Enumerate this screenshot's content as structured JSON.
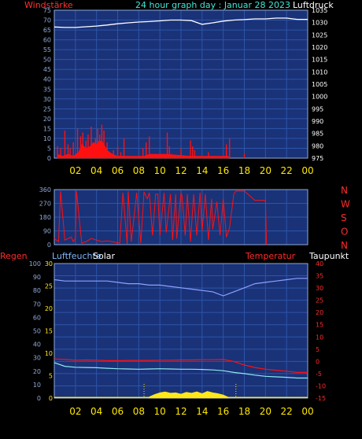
{
  "colors": {
    "background": "#000000",
    "panel": "#1a3278",
    "grid": "#2d55a8",
    "border": "#8fa8d8",
    "white": "#ffffff",
    "red": "#ff1010",
    "cyan": "#8fe8f0",
    "blue_line": "#8fa0ff",
    "yellow": "#ffe81a",
    "label_red": "#ff2a2a",
    "label_blue": "#7fb7ff",
    "label_cyan": "#40e8d8",
    "x_tick": "#ffe800"
  },
  "header": {
    "left": "Windstärke",
    "center": "24 hour graph day : Januar 28 2023",
    "right": "Luftdruck"
  },
  "bottom_header": {
    "regen": "Regen",
    "luftfeuchte": "Luftfeuchte",
    "solar": "Solar",
    "temperatur": "Temperatur",
    "taupunkt": "Taupunkt"
  },
  "x_ticks": [
    "02",
    "04",
    "06",
    "08",
    "10",
    "12",
    "14",
    "16",
    "18",
    "20",
    "22",
    "00"
  ],
  "chart_data": [
    {
      "type": "line",
      "name": "wind_and_pressure",
      "y_left": {
        "label": "Windstärke",
        "ticks": [
          "0",
          "5",
          "10",
          "15",
          "20",
          "25",
          "30",
          "35",
          "40",
          "45",
          "50",
          "55",
          "60",
          "65",
          "70",
          "75"
        ],
        "range": [
          0,
          75
        ]
      },
      "y_right": {
        "label": "Luftdruck",
        "ticks": [
          "975",
          "980",
          "985",
          "990",
          "995",
          "1000",
          "1005",
          "1010",
          "1015",
          "1020",
          "1025",
          "1030",
          "1035"
        ],
        "range": [
          975,
          1035
        ]
      },
      "x_range_hours": [
        0,
        24
      ],
      "series": [
        {
          "series_key": "pressure",
          "axis": "right",
          "x": [
            0,
            1,
            2,
            3,
            4,
            5,
            6,
            7,
            8,
            9,
            10,
            11,
            12,
            13,
            14,
            15,
            16,
            17,
            18,
            19,
            20,
            21,
            22,
            23,
            24
          ],
          "y": [
            1028.2,
            1028.0,
            1028.0,
            1028.3,
            1028.6,
            1029.0,
            1029.5,
            1029.9,
            1030.2,
            1030.4,
            1030.7,
            1031.0,
            1031.0,
            1030.8,
            1029.3,
            1029.9,
            1030.6,
            1031.0,
            1031.2,
            1031.5,
            1031.5,
            1031.8,
            1031.8,
            1031.3,
            1031.3
          ]
        },
        {
          "series_key": "gust",
          "axis": "left",
          "style": "bar",
          "x": [
            0.3,
            0.6,
            1.0,
            1.3,
            1.5,
            1.8,
            2.2,
            2.5,
            2.7,
            3.0,
            3.2,
            3.5,
            3.7,
            3.9,
            4.1,
            4.3,
            4.5,
            4.7,
            5.0,
            5.6,
            6.0,
            6.3,
            6.6,
            8.4,
            8.7,
            9.0,
            10.7,
            10.9,
            12.0,
            12.9,
            13.1,
            13.3,
            14.6,
            16.3,
            16.6,
            18.0
          ],
          "y": [
            6,
            5,
            14,
            7,
            5,
            8,
            15,
            11,
            13,
            9,
            12,
            16,
            8,
            10,
            15,
            12,
            17,
            14,
            8,
            4,
            6,
            3,
            10,
            5,
            8,
            11,
            13,
            6,
            5,
            9,
            6,
            4,
            3,
            7,
            10,
            2
          ]
        },
        {
          "series_key": "wind",
          "axis": "left",
          "style": "area",
          "x": [
            0.3,
            0.8,
            1.3,
            1.8,
            2.3,
            2.6,
            3.0,
            3.4,
            3.7,
            4.0,
            4.3,
            4.6,
            5.0,
            5.5,
            6.0,
            6.5,
            8.5,
            9.0,
            10.7,
            12.9,
            16.5
          ],
          "y": [
            2,
            1,
            2,
            1,
            3,
            7,
            5,
            6,
            8,
            7,
            9,
            8,
            4,
            2,
            1,
            1,
            1,
            2,
            2,
            1,
            1
          ]
        }
      ]
    },
    {
      "type": "line",
      "name": "wind_direction",
      "y_left": {
        "ticks": [
          "0",
          "90",
          "180",
          "270",
          "360"
        ],
        "range": [
          0,
          360
        ]
      },
      "y_right": {
        "ticks": [
          "N",
          "W",
          "S",
          "O",
          "N"
        ]
      },
      "x_range_hours": [
        0,
        24
      ],
      "series": [
        {
          "series_key": "direction",
          "x": [
            0,
            0.4,
            0.6,
            1.0,
            1.6,
            1.8,
            2.0,
            2.1,
            2.6,
            3.0,
            3.5,
            4.0,
            4.5,
            5.0,
            5.5,
            6.2,
            6.5,
            6.9,
            7.0,
            7.3,
            7.8,
            8.2,
            8.5,
            8.8,
            9.0,
            9.3,
            9.6,
            9.8,
            10.0,
            10.4,
            10.6,
            11.0,
            11.2,
            11.5,
            11.6,
            12.0,
            12.1,
            12.4,
            12.6,
            12.9,
            13.2,
            13.5,
            13.8,
            14.0,
            14.3,
            14.6,
            14.9,
            15.0,
            15.4,
            15.7,
            16.0,
            16.3,
            16.6,
            17.0,
            17.2,
            17.6,
            18.0,
            19.0,
            20.0,
            20.1
          ],
          "y": [
            40,
            20,
            350,
            30,
            50,
            20,
            40,
            350,
            10,
            20,
            40,
            30,
            20,
            25,
            20,
            10,
            340,
            5,
            350,
            20,
            340,
            10,
            345,
            300,
            340,
            60,
            330,
            330,
            60,
            340,
            80,
            330,
            30,
            330,
            40,
            340,
            320,
            60,
            330,
            20,
            330,
            60,
            340,
            90,
            330,
            30,
            300,
            100,
            280,
            60,
            300,
            50,
            110,
            330,
            350,
            350,
            350,
            290,
            290,
            0
          ]
        }
      ]
    },
    {
      "type": "line",
      "name": "humidity_temperature",
      "y_left_outer": {
        "label": "Regen",
        "ticks": [
          "0",
          "10",
          "20",
          "30",
          "40",
          "50",
          "60",
          "70",
          "80",
          "90",
          "100"
        ],
        "range": [
          0,
          100
        ]
      },
      "y_left_inner": {
        "label": "Luftfeuchte",
        "ticks": [
          "0",
          "5",
          "10",
          "15",
          "20",
          "25",
          "30"
        ],
        "range": [
          0,
          30
        ]
      },
      "y_right": {
        "label": "Temperatur",
        "ticks": [
          "40",
          "35",
          "30",
          "25",
          "20",
          "15",
          "10",
          "5",
          "0",
          "-5",
          "-10",
          "-15"
        ],
        "range": [
          -15,
          40
        ]
      },
      "x_range_hours": [
        0,
        24
      ],
      "series": [
        {
          "series_key": "humidity",
          "axis": "left_outer",
          "x": [
            0,
            1,
            2,
            3,
            4,
            5,
            6,
            7,
            8,
            9,
            10,
            11,
            12,
            13,
            14,
            15,
            16,
            17,
            18,
            19,
            20,
            21,
            22,
            23,
            24
          ],
          "y": [
            88,
            87,
            87,
            87,
            87,
            87,
            86,
            85,
            85,
            84,
            84,
            83,
            82,
            81,
            80,
            79,
            76,
            79,
            82,
            85,
            86,
            87,
            88,
            89,
            89
          ]
        },
        {
          "series_key": "temperature",
          "axis": "right",
          "x": [
            0,
            1,
            2,
            3,
            4,
            5,
            6,
            7,
            8,
            9,
            10,
            11,
            12,
            13,
            14,
            15,
            16,
            17,
            18,
            19,
            20,
            21,
            22,
            23,
            24
          ],
          "y": [
            1.0,
            0.8,
            0.5,
            0.6,
            0.5,
            0.3,
            0.3,
            0.4,
            0.4,
            0.4,
            0.5,
            0.5,
            0.6,
            0.6,
            0.7,
            0.7,
            0.8,
            0.0,
            -1.5,
            -2.5,
            -3.2,
            -3.6,
            -4.0,
            -4.5,
            -4.5
          ]
        },
        {
          "series_key": "dewpoint",
          "axis": "right",
          "x": [
            0,
            1,
            2,
            3,
            4,
            5,
            6,
            7,
            8,
            9,
            10,
            11,
            12,
            13,
            14,
            15,
            16,
            17,
            18,
            19,
            20,
            21,
            22,
            23,
            24
          ],
          "y": [
            -0.5,
            -2.0,
            -2.4,
            -2.5,
            -2.6,
            -2.8,
            -3.0,
            -3.1,
            -3.2,
            -3.1,
            -3.0,
            -3.1,
            -3.2,
            -3.2,
            -3.3,
            -3.5,
            -3.8,
            -4.5,
            -5.0,
            -5.6,
            -6.1,
            -6.3,
            -6.5,
            -6.8,
            -6.8
          ]
        },
        {
          "series_key": "solar",
          "axis": "left_inner",
          "style": "area",
          "x": [
            9.0,
            9.5,
            10.0,
            10.5,
            11.0,
            11.5,
            12.0,
            12.5,
            13.0,
            13.5,
            14.0,
            14.5,
            15.0,
            15.5,
            16.0,
            16.5
          ],
          "y": [
            0.3,
            0.8,
            1.2,
            1.4,
            1.1,
            1.2,
            0.9,
            1.3,
            1.1,
            1.4,
            1.0,
            1.5,
            1.2,
            1.0,
            0.7,
            0.2
          ]
        },
        {
          "series_key": "rain",
          "axis": "left_outer",
          "style": "baseline",
          "x": [
            0,
            24
          ],
          "y": [
            0,
            0
          ]
        }
      ]
    }
  ]
}
